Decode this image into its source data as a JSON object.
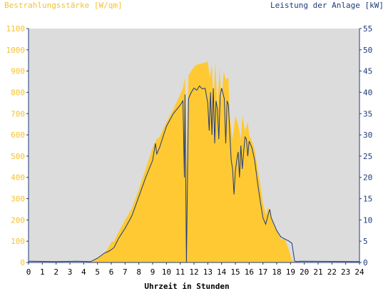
{
  "chart_data": {
    "type": "area",
    "title_left": "Bestrahlungsstärke [W/qm]",
    "title_right": "Leistung der Anlage [kW]",
    "xlabel": "Uhrzeit in Stunden",
    "xlim": [
      0,
      24
    ],
    "x_ticks": [
      "0",
      "1",
      "2",
      "3",
      "4",
      "5",
      "6",
      "7",
      "8",
      "9",
      "10",
      "11",
      "12",
      "13",
      "14",
      "15",
      "16",
      "17",
      "18",
      "19",
      "20",
      "21",
      "22",
      "23",
      "24"
    ],
    "y_left": {
      "lim": [
        0,
        1100
      ],
      "ticks": [
        "0",
        "100",
        "200",
        "300",
        "400",
        "500",
        "600",
        "700",
        "800",
        "900",
        "1000",
        "1100"
      ]
    },
    "y_right": {
      "lim": [
        0,
        55
      ],
      "ticks": [
        "0",
        "5",
        "10",
        "15",
        "20",
        "25",
        "30",
        "35",
        "40",
        "45",
        "50",
        "55"
      ]
    },
    "colors": {
      "plot_bg": "#dcdcdc",
      "irradiance_fill": "#ffc933",
      "power_line": "#1f3a7a",
      "left_axis_text": "#f5c230",
      "right_axis_text": "#1f3a7a"
    },
    "series": [
      {
        "axis": "left",
        "x": [
          0,
          4.5,
          5.0,
          5.5,
          5.8,
          6.0,
          6.2,
          6.5,
          6.8,
          7.0,
          7.5,
          8.0,
          8.5,
          9.0,
          9.3,
          9.5,
          10.0,
          10.5,
          11.0,
          11.2,
          11.35,
          11.45,
          11.6,
          11.8,
          12.0,
          12.2,
          12.5,
          12.8,
          13.0,
          13.15,
          13.3,
          13.4,
          13.55,
          13.7,
          13.85,
          14.0,
          14.15,
          14.3,
          14.5,
          14.6,
          14.8,
          15.0,
          15.2,
          15.4,
          15.5,
          15.7,
          15.9,
          16.0,
          16.2,
          16.4,
          16.6,
          16.8,
          17.0,
          17.2,
          17.4,
          17.6,
          17.8,
          18.0,
          18.3,
          18.6,
          18.9,
          19.1,
          19.3,
          19.45,
          19.6,
          24
        ],
        "y": [
          0,
          0,
          20,
          45,
          70,
          95,
          100,
          140,
          175,
          200,
          255,
          345,
          440,
          540,
          580,
          590,
          660,
          720,
          790,
          820,
          870,
          430,
          880,
          900,
          920,
          930,
          935,
          940,
          945,
          870,
          930,
          750,
          945,
          720,
          920,
          750,
          900,
          860,
          870,
          680,
          580,
          690,
          650,
          580,
          690,
          620,
          660,
          600,
          570,
          530,
          450,
          370,
          280,
          225,
          260,
          215,
          180,
          150,
          110,
          110,
          55,
          10,
          3,
          0,
          0,
          0
        ]
      },
      {
        "axis": "right",
        "x": [
          0,
          2.0,
          3.5,
          4.5,
          5.0,
          5.5,
          5.8,
          6.0,
          6.2,
          6.5,
          6.7,
          7.0,
          7.5,
          8.0,
          8.5,
          9.0,
          9.2,
          9.3,
          9.5,
          10.0,
          10.5,
          11.0,
          11.2,
          11.3,
          11.35,
          11.45,
          11.6,
          11.8,
          12.0,
          12.2,
          12.4,
          12.6,
          12.8,
          13.0,
          13.1,
          13.2,
          13.3,
          13.4,
          13.5,
          13.6,
          13.7,
          13.8,
          13.9,
          14.0,
          14.2,
          14.3,
          14.4,
          14.5,
          14.6,
          14.7,
          14.8,
          14.9,
          15.0,
          15.1,
          15.2,
          15.3,
          15.4,
          15.5,
          15.6,
          15.7,
          15.8,
          15.9,
          16.0,
          16.2,
          16.4,
          16.6,
          16.8,
          17.0,
          17.2,
          17.4,
          17.5,
          17.6,
          17.8,
          18.0,
          18.3,
          18.6,
          18.9,
          19.1,
          19.3,
          19.5,
          19.7,
          24
        ],
        "y": [
          0.3,
          0.2,
          0.3,
          0.2,
          1.0,
          2.2,
          2.6,
          3.0,
          3.5,
          5.5,
          6.5,
          8.0,
          11.0,
          15.5,
          20.0,
          24.0,
          28.0,
          25.5,
          27.0,
          32.0,
          35.0,
          37.0,
          38.0,
          20.0,
          39.5,
          0.0,
          38.5,
          40.0,
          41.0,
          40.5,
          41.5,
          40.8,
          41.0,
          37.5,
          31.0,
          40.0,
          30.0,
          41.0,
          28.0,
          38.0,
          36.0,
          29.0,
          39.0,
          41.0,
          38.5,
          28.0,
          38.0,
          37.0,
          30.0,
          24.0,
          22.0,
          16.0,
          21.5,
          24.0,
          26.0,
          20.0,
          27.5,
          22.0,
          26.0,
          29.5,
          29.0,
          25.0,
          28.5,
          27.0,
          24.0,
          19.0,
          14.5,
          10.5,
          9.0,
          11.5,
          12.5,
          10.5,
          9.0,
          7.5,
          6.0,
          5.5,
          5.0,
          4.5,
          0.3,
          0.2,
          0.3,
          0.2
        ]
      }
    ]
  }
}
